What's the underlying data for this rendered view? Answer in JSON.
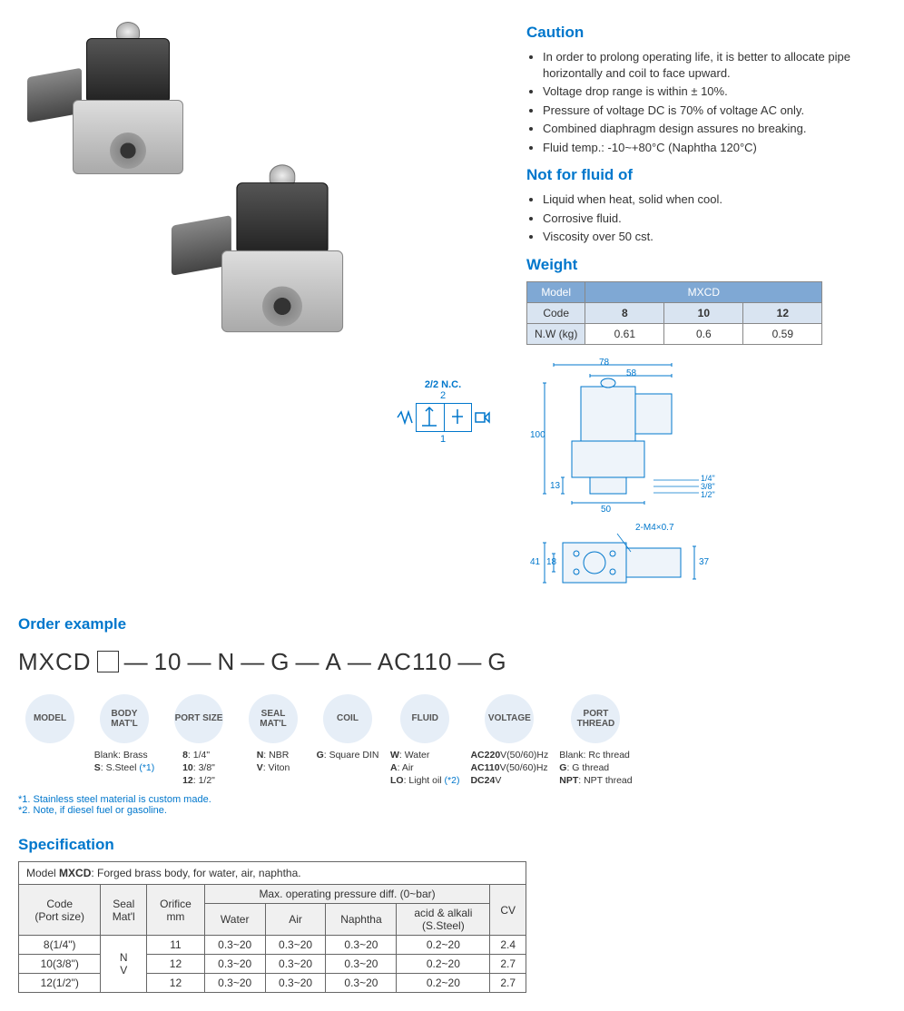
{
  "caution": {
    "title": "Caution",
    "items": [
      "In order to prolong operating life, it is better to allocate pipe horizontally and coil to face upward.",
      "Voltage drop range is within ± 10%.",
      "Pressure of voltage DC is 70% of voltage AC only.",
      "Combined diaphragm design assures no breaking.",
      "Fluid temp.: -10~+80°C (Naphtha 120°C)"
    ]
  },
  "notfor": {
    "title": "Not for fluid of",
    "items": [
      "Liquid when heat, solid when cool.",
      "Corrosive fluid.",
      "Viscosity over 50 cst."
    ]
  },
  "weight": {
    "title": "Weight",
    "model_label": "Model",
    "model": "MXCD",
    "code_label": "Code",
    "codes": [
      "8",
      "10",
      "12"
    ],
    "nw_label": "N.W (kg)",
    "nw": [
      "0.61",
      "0.6",
      "0.59"
    ]
  },
  "schematic": {
    "label": "2/2 N.C.",
    "port_top": "2",
    "port_bot": "1"
  },
  "dims": {
    "w_total": "78",
    "w_coil": "58",
    "h_total": "100",
    "h_port": "13",
    "w_body": "50",
    "ports": [
      "1/4\"",
      "3/8\"",
      "1/2\""
    ],
    "screw": "2-M4×0.7",
    "top_w": "41",
    "top_h": "18",
    "top_total": "37"
  },
  "order": {
    "title": "Order example",
    "parts": [
      "MXCD",
      "□",
      "—",
      "10",
      "—",
      "N",
      "—",
      "G",
      "—",
      "A",
      "—",
      "AC110",
      "—",
      "G"
    ],
    "legend": [
      {
        "name": "MODEL",
        "opts": []
      },
      {
        "name": "BODY MAT'L",
        "opts": [
          "Blank: Brass",
          "<b>S</b>: S.Steel <span style='color:#0077cc'>(*1)</span>"
        ]
      },
      {
        "name": "PORT SIZE",
        "opts": [
          "<b>8</b>: 1/4\"",
          "<b>10</b>: 3/8\"",
          "<b>12</b>: 1/2\""
        ]
      },
      {
        "name": "SEAL MAT'L",
        "opts": [
          "<b>N</b>: NBR",
          "<b>V</b>: Viton"
        ]
      },
      {
        "name": "COIL",
        "opts": [
          "<b>G</b>: Square DIN"
        ]
      },
      {
        "name": "FLUID",
        "opts": [
          "<b>W</b>: Water",
          "<b>A</b>: Air",
          "<b>LO</b>: Light oil <span style='color:#0077cc'>(*2)</span>"
        ]
      },
      {
        "name": "VOLTAGE",
        "opts": [
          "<b>AC220</b>V(50/60)Hz",
          "<b>AC110</b>V(50/60)Hz",
          "<b>DC24</b>V"
        ]
      },
      {
        "name": "PORT THREAD",
        "opts": [
          "Blank: Rc thread",
          "<b>G</b>: G thread",
          "<b>NPT</b>: NPT thread"
        ]
      }
    ],
    "notes": [
      "*1. Stainless steel material is custom made.",
      "*2. Note, if diesel fuel or gasoline."
    ]
  },
  "spec": {
    "title": "Specification",
    "model_row": "Model <b>MXCD</b>: Forged brass body, for water, air, naphtha.",
    "headers": {
      "code": "Code<br>(Port size)",
      "seal": "Seal<br>Mat'l",
      "orifice": "Orifice<br>mm",
      "press": "Max. operating pressure diff. (0~bar)",
      "water": "Water",
      "air": "Air",
      "naphtha": "Naphtha",
      "acid": "acid & alkali<br>(S.Steel)",
      "cv": "CV"
    },
    "rows": [
      {
        "code": "8(1/4\")",
        "orifice": "11",
        "water": "0.3~20",
        "air": "0.3~20",
        "naphtha": "0.3~20",
        "acid": "0.2~20",
        "cv": "2.4"
      },
      {
        "code": "10(3/8\")",
        "orifice": "12",
        "water": "0.3~20",
        "air": "0.3~20",
        "naphtha": "0.3~20",
        "acid": "0.2~20",
        "cv": "2.7"
      },
      {
        "code": "12(1/2\")",
        "orifice": "12",
        "water": "0.3~20",
        "air": "0.3~20",
        "naphtha": "0.3~20",
        "acid": "0.2~20",
        "cv": "2.7"
      }
    ],
    "seal_merged": "N<br>V"
  }
}
